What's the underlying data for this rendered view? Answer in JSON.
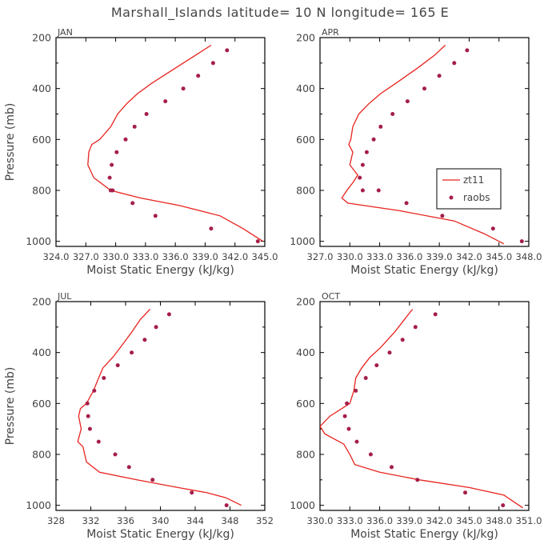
{
  "title": "Marshall_Islands  latitude= 10 N longitude= 165 E",
  "colors": {
    "model": "#e8231e",
    "obs": "#a51e48",
    "axis": "#000000",
    "text": "#444444"
  },
  "legend": {
    "model_label": "zt11",
    "obs_label": "raobs"
  },
  "chart_data": [
    {
      "type": "line",
      "panel": "JAN",
      "xlabel": "Moist Static Energy (kJ/kg)",
      "ylabel": "Pressure (mb)",
      "xlim": [
        324.0,
        345.0
      ],
      "ylim": [
        1020,
        200
      ],
      "xticks": [
        324.0,
        327.0,
        330.0,
        333.0,
        336.0,
        339.0,
        342.0,
        345.0
      ],
      "xtick_labels": [
        "324.0",
        "327.0",
        "330.0",
        "333.0",
        "336.0",
        "339.0",
        "342.0",
        "345.0"
      ],
      "yticks": [
        200,
        400,
        600,
        800,
        1000
      ],
      "series": [
        {
          "name": "zt11",
          "style": "line",
          "x": [
            339.6,
            338.0,
            336.0,
            333.6,
            332.2,
            331.1,
            330.2,
            329.5,
            328.4,
            327.6,
            327.3,
            327.2,
            327.8,
            329.5,
            332.5,
            336.5,
            340.5,
            342.8,
            344.8
          ],
          "y": [
            230,
            270,
            320,
            380,
            420,
            460,
            500,
            550,
            600,
            620,
            650,
            700,
            750,
            800,
            830,
            860,
            900,
            950,
            1000
          ]
        },
        {
          "name": "raobs",
          "style": "markers",
          "x": [
            341.2,
            339.8,
            338.3,
            336.8,
            335.0,
            333.1,
            331.9,
            331.0,
            330.1,
            329.6,
            329.4,
            329.5,
            329.7,
            331.7,
            334.0,
            339.6,
            344.3
          ],
          "y": [
            250,
            300,
            350,
            400,
            450,
            500,
            550,
            600,
            650,
            700,
            750,
            800,
            800,
            850,
            900,
            950,
            1000
          ]
        }
      ]
    },
    {
      "type": "line",
      "panel": "APR",
      "xlabel": "Moist Static Energy (kJ/kg)",
      "ylabel": "Pressure (mb)",
      "xlim": [
        327.0,
        348.0
      ],
      "ylim": [
        1020,
        200
      ],
      "xticks": [
        327.0,
        330.0,
        333.0,
        336.0,
        339.0,
        342.0,
        345.0,
        348.0
      ],
      "xtick_labels": [
        "327.0",
        "330.0",
        "333.0",
        "336.0",
        "339.0",
        "342.0",
        "345.0",
        "348.0"
      ],
      "yticks": [
        200,
        400,
        600,
        800,
        1000
      ],
      "series": [
        {
          "name": "zt11",
          "style": "line",
          "x": [
            339.6,
            338.5,
            336.8,
            334.6,
            333.1,
            331.9,
            330.9,
            330.3,
            330.1,
            329.9,
            330.3,
            330.0,
            330.8,
            330.3,
            329.7,
            329.2,
            329.8,
            335.0,
            340.5,
            343.5,
            345.5
          ],
          "y": [
            230,
            270,
            320,
            380,
            420,
            460,
            500,
            550,
            600,
            620,
            650,
            700,
            740,
            770,
            800,
            830,
            850,
            880,
            920,
            970,
            1010
          ]
        },
        {
          "name": "raobs",
          "style": "markers",
          "x": [
            341.8,
            340.5,
            339.0,
            337.5,
            335.8,
            334.3,
            333.1,
            332.4,
            331.7,
            331.3,
            331.0,
            331.3,
            332.9,
            335.7,
            339.3,
            344.4,
            347.3
          ],
          "y": [
            250,
            300,
            350,
            400,
            450,
            500,
            550,
            600,
            650,
            700,
            750,
            800,
            800,
            850,
            900,
            950,
            1000
          ]
        }
      ]
    },
    {
      "type": "line",
      "panel": "JUL",
      "xlabel": "Moist Static Energy (kJ/kg)",
      "ylabel": "Pressure (mb)",
      "xlim": [
        328,
        352
      ],
      "ylim": [
        1020,
        200
      ],
      "xticks": [
        328,
        332,
        336,
        340,
        344,
        348,
        352
      ],
      "xtick_labels": [
        "328",
        "332",
        "336",
        "340",
        "344",
        "348",
        "352"
      ],
      "yticks": [
        200,
        400,
        600,
        800,
        1000
      ],
      "series": [
        {
          "name": "zt11",
          "style": "line",
          "x": [
            338.8,
            337.7,
            336.7,
            335.4,
            334.5,
            333.4,
            332.9,
            332.3,
            331.5,
            330.8,
            330.6,
            330.9,
            330.5,
            331.1,
            331.5,
            333.0,
            337.3,
            342.0,
            345.3,
            347.5,
            349.3
          ],
          "y": [
            230,
            270,
            320,
            380,
            420,
            460,
            500,
            550,
            600,
            620,
            650,
            700,
            750,
            770,
            830,
            870,
            900,
            930,
            950,
            970,
            1000
          ]
        },
        {
          "name": "raobs",
          "style": "markers",
          "x": [
            341.0,
            339.5,
            338.2,
            336.7,
            335.1,
            333.5,
            332.4,
            331.6,
            331.7,
            331.9,
            332.9,
            334.8,
            336.4,
            339.1,
            343.6,
            347.6
          ],
          "y": [
            250,
            300,
            350,
            400,
            450,
            500,
            550,
            600,
            650,
            700,
            750,
            800,
            850,
            900,
            950,
            1000
          ]
        }
      ]
    },
    {
      "type": "line",
      "panel": "OCT",
      "xlabel": "Moist Static Energy (kJ/kg)",
      "ylabel": "Pressure (mb)",
      "xlim": [
        330.0,
        351.0
      ],
      "ylim": [
        1020,
        200
      ],
      "xticks": [
        330.0,
        333.0,
        336.0,
        339.0,
        342.0,
        345.0,
        348.0,
        351.0
      ],
      "xtick_labels": [
        "330.0",
        "333.0",
        "336.0",
        "339.0",
        "342.0",
        "345.0",
        "348.0",
        "351.0"
      ],
      "yticks": [
        200,
        400,
        600,
        800,
        1000
      ],
      "series": [
        {
          "name": "zt11",
          "style": "line",
          "x": [
            339.3,
            338.5,
            337.5,
            336.1,
            335.0,
            334.2,
            333.6,
            333.4,
            333.0,
            331.0,
            330.0,
            330.5,
            332.4,
            333.0,
            333.5,
            336.0,
            340.0,
            345.0,
            348.5,
            350.4
          ],
          "y": [
            230,
            270,
            320,
            380,
            420,
            460,
            500,
            550,
            600,
            650,
            690,
            720,
            760,
            800,
            840,
            870,
            900,
            930,
            960,
            1010
          ]
        },
        {
          "name": "raobs",
          "style": "markers",
          "x": [
            341.6,
            339.6,
            338.3,
            337.0,
            335.7,
            334.6,
            333.6,
            332.7,
            332.5,
            332.9,
            333.7,
            335.1,
            337.2,
            339.8,
            344.6,
            348.4
          ],
          "y": [
            250,
            300,
            350,
            400,
            450,
            500,
            550,
            600,
            650,
            700,
            750,
            800,
            850,
            900,
            950,
            1000
          ]
        }
      ]
    }
  ]
}
